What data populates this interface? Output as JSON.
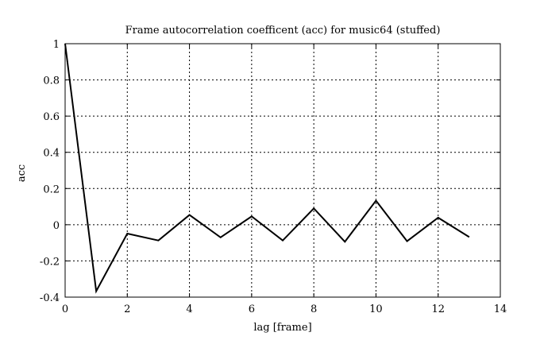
{
  "chart_data": {
    "type": "line",
    "title": "Frame autocorrelation coefficent (acc) for music64 (stuffed)",
    "xlabel": "lag [frame]",
    "ylabel": "acc",
    "xlim": [
      0,
      14
    ],
    "ylim": [
      -0.4,
      1
    ],
    "xticks": [
      0,
      2,
      4,
      6,
      8,
      10,
      12,
      14
    ],
    "yticks": [
      -0.4,
      -0.2,
      0,
      0.2,
      0.4,
      0.6,
      0.8,
      1
    ],
    "xtick_labels": [
      "0",
      "2",
      "4",
      "6",
      "8",
      "10",
      "12",
      "14"
    ],
    "ytick_labels": [
      "-0.4",
      "-0.2",
      "0",
      "0.2",
      "0.4",
      "0.6",
      "0.8",
      "1"
    ],
    "grid": true,
    "line_color": "#000000",
    "series": [
      {
        "x": [
          0,
          1,
          2,
          3,
          4,
          5,
          6,
          7,
          8,
          9,
          10,
          11,
          12,
          13
        ],
        "y": [
          1,
          -0.367,
          -0.049,
          -0.087,
          0.054,
          -0.07,
          0.046,
          -0.087,
          0.09,
          -0.094,
          0.133,
          -0.091,
          0.039,
          -0.068
        ]
      }
    ]
  }
}
